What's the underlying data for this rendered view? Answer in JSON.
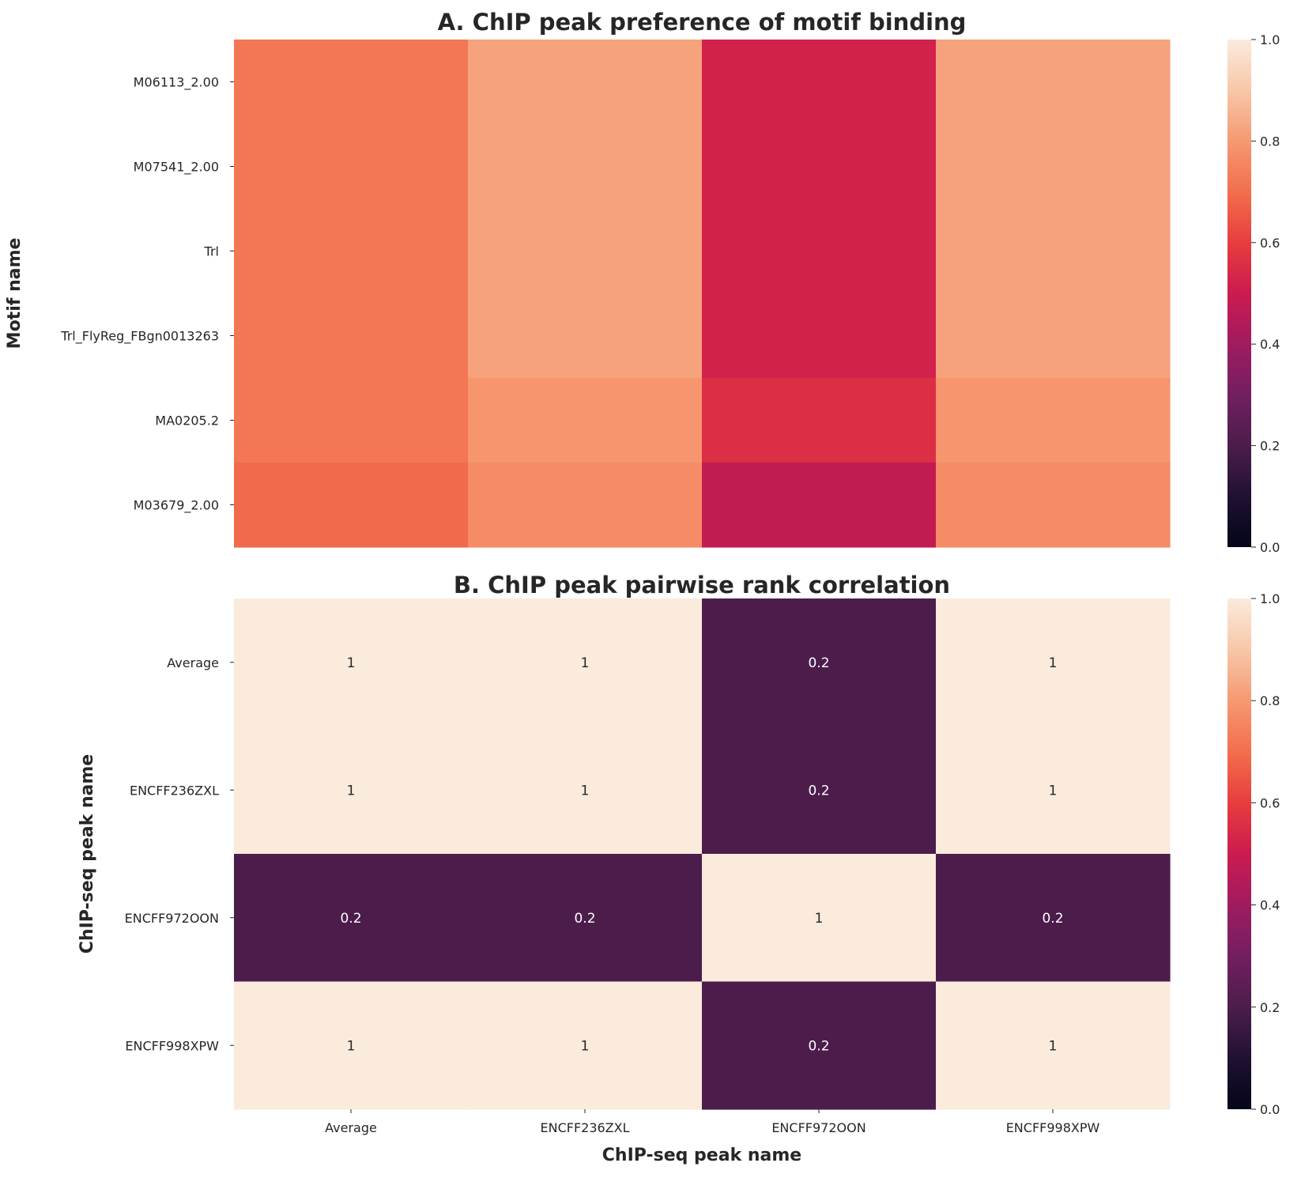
{
  "chart_data": [
    {
      "type": "heatmap",
      "title": "A. ChIP peak preference of motif binding",
      "xlabel": "",
      "ylabel": "Motif name",
      "x_categories": [
        "Average",
        "ENCFF236ZXL",
        "ENCFF972OON",
        "ENCFF998XPW"
      ],
      "x_tick_labels_shown": false,
      "y_categories": [
        "M06113_2.00",
        "M07541_2.00",
        "Trl",
        "Trl_FlyReg_FBgn0013263",
        "MA0205.2",
        "M03679_2.00"
      ],
      "values": [
        [
          0.72,
          0.82,
          0.52,
          0.82
        ],
        [
          0.72,
          0.82,
          0.52,
          0.82
        ],
        [
          0.72,
          0.82,
          0.52,
          0.82
        ],
        [
          0.72,
          0.82,
          0.52,
          0.82
        ],
        [
          0.72,
          0.79,
          0.56,
          0.79
        ],
        [
          0.69,
          0.77,
          0.48,
          0.77
        ]
      ],
      "annotated": false,
      "colormap": "rocket",
      "vmin": 0.0,
      "vmax": 1.0,
      "colorbar_ticks": [
        "0.0",
        "0.2",
        "0.4",
        "0.6",
        "0.8",
        "1.0"
      ]
    },
    {
      "type": "heatmap",
      "title": "B. ChIP peak pairwise rank correlation",
      "xlabel": "ChIP-seq peak name",
      "ylabel": "ChIP-seq peak name",
      "x_categories": [
        "Average",
        "ENCFF236ZXL",
        "ENCFF972OON",
        "ENCFF998XPW"
      ],
      "x_tick_labels_shown": true,
      "y_categories": [
        "Average",
        "ENCFF236ZXL",
        "ENCFF972OON",
        "ENCFF998XPW"
      ],
      "values": [
        [
          1,
          1,
          0.2,
          1
        ],
        [
          1,
          1,
          0.2,
          1
        ],
        [
          0.2,
          0.2,
          1,
          0.2
        ],
        [
          1,
          1,
          0.2,
          1
        ]
      ],
      "annotations": [
        [
          "1",
          "1",
          "0.2",
          "1"
        ],
        [
          "1",
          "1",
          "0.2",
          "1"
        ],
        [
          "0.2",
          "0.2",
          "1",
          "0.2"
        ],
        [
          "1",
          "1",
          "0.2",
          "1"
        ]
      ],
      "annotated": true,
      "colormap": "rocket",
      "vmin": 0.0,
      "vmax": 1.0,
      "colorbar_ticks": [
        "0.0",
        "0.2",
        "0.4",
        "0.6",
        "0.8",
        "1.0"
      ]
    }
  ]
}
